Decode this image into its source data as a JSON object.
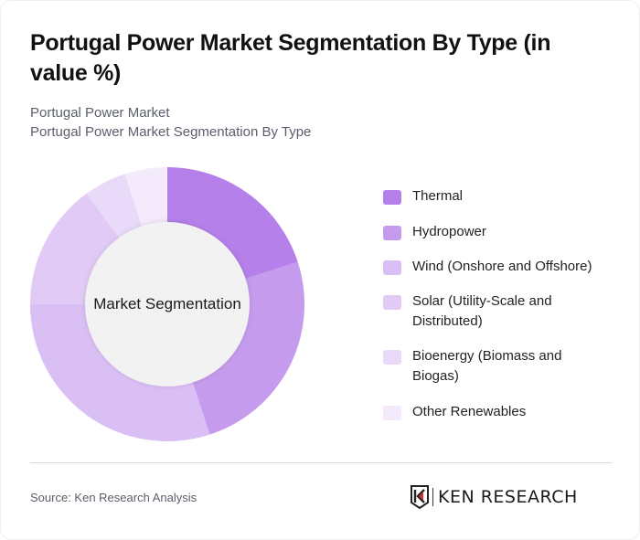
{
  "header": {
    "title": "Portugal Power Market Segmentation By Type (in value %)",
    "subtitle_1": "Portugal Power Market",
    "subtitle_2": "Portugal Power Market Segmentation By Type"
  },
  "chart": {
    "center_label": "Market Segmentation"
  },
  "legend": {
    "items": [
      {
        "label": "Thermal",
        "color": "#b580ea"
      },
      {
        "label": "Hydropower",
        "color": "#c59ced"
      },
      {
        "label": "Wind (Onshore and Offshore)",
        "color": "#dabff5"
      },
      {
        "label": "Solar (Utility-Scale and Distributed)",
        "color": "#e1cbf6"
      },
      {
        "label": "Bioenergy (Biomass and Biogas)",
        "color": "#e9dafa"
      },
      {
        "label": "Other Renewables",
        "color": "#f3ebfc"
      }
    ]
  },
  "footer": {
    "source": "Source: Ken Research Analysis",
    "logo_text": "KEN RESEARCH"
  },
  "chart_data": {
    "type": "pie",
    "variant": "donut",
    "title": "Portugal Power Market Segmentation By Type (in value %)",
    "subtitle": "Portugal Power Market Segmentation By Type",
    "center_label": "Market Segmentation",
    "categories": [
      "Thermal",
      "Hydropower",
      "Wind (Onshore and Offshore)",
      "Solar (Utility-Scale and Distributed)",
      "Bioenergy (Biomass and Biogas)",
      "Other Renewables"
    ],
    "values": [
      20,
      25,
      30,
      15,
      5,
      5
    ],
    "colors": [
      "#b580ea",
      "#c59ced",
      "#dabff5",
      "#e1cbf6",
      "#e9dafa",
      "#f3ebfc"
    ],
    "start_angle": 0,
    "direction": "clockwise",
    "legend_position": "right",
    "data_labels": false
  }
}
